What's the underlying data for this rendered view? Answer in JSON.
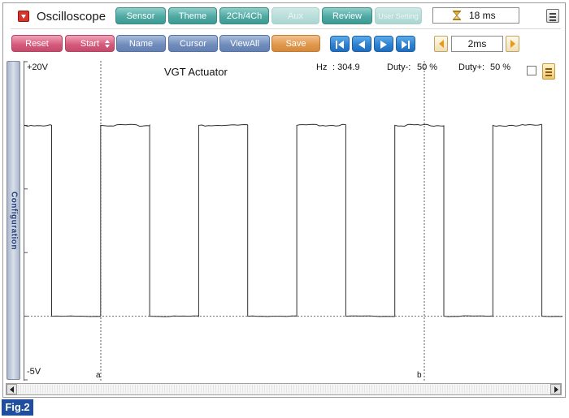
{
  "header": {
    "title": "Oscilloscope",
    "tabs": [
      {
        "label": "Sensor",
        "enabled": true
      },
      {
        "label": "Theme",
        "enabled": true
      },
      {
        "label": "2Ch/4Ch",
        "enabled": true
      },
      {
        "label": "Aux",
        "enabled": false
      },
      {
        "label": "Review",
        "enabled": true
      },
      {
        "label": "User Setting",
        "enabled": false
      }
    ],
    "time_value": "18 ms",
    "icons": {
      "menu": "dropdown-arrow-icon",
      "time": "hourglass-icon",
      "options": "list-icon"
    }
  },
  "toolbar": {
    "reset_label": "Reset",
    "start_label": "Start",
    "name_label": "Name",
    "cursor_label": "Cursor",
    "viewall_label": "ViewAll",
    "save_label": "Save",
    "nav_icons": [
      "skip-first-icon",
      "step-back-icon",
      "step-forward-icon",
      "skip-last-icon"
    ],
    "time_scale": "2ms"
  },
  "sidebar": {
    "label": "Configuration"
  },
  "plot": {
    "channel_title": "VGT Actuator",
    "y_max_label": "+20V",
    "y_min_label": "-5V",
    "hz_label": "Hz",
    "hz_value": ": 304.9",
    "duty_minus_label": "Duty-:",
    "duty_minus_value": "50 %",
    "duty_plus_label": "Duty+:",
    "duty_plus_value": "50 %",
    "cursor_a_label": "a",
    "cursor_b_label": "b"
  },
  "chart_data": {
    "type": "line",
    "title": "VGT Actuator",
    "xlabel": "",
    "ylabel": "",
    "ylim": [
      -5,
      20
    ],
    "y_unit": "V",
    "x_unit": "ms",
    "time_per_division": 2,
    "grid": "dotted",
    "series": [
      {
        "name": "VGT Actuator",
        "signal": "square",
        "frequency_hz": 304.9,
        "duty_percent": 50,
        "high_v": 15,
        "low_v": 0
      }
    ],
    "cursors": [
      {
        "name": "a"
      },
      {
        "name": "b"
      }
    ]
  },
  "footer": {
    "figure_label": "Fig.2"
  }
}
